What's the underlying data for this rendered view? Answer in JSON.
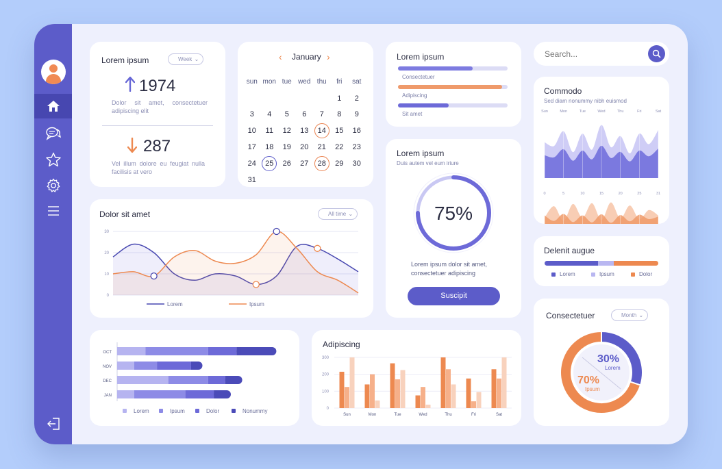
{
  "colors": {
    "primary": "#5c5cc9",
    "orange": "#ed8950",
    "light_purple": "#a8a6ee",
    "peach": "#f6c1a5",
    "background": "#b3cdfb"
  },
  "sidebar": {
    "icons": [
      "home-icon",
      "chat-icon",
      "star-icon",
      "gear-icon",
      "menu-icon"
    ],
    "logout_icon": "logout-icon"
  },
  "stats": {
    "title": "Lorem ipsum",
    "dropdown": "Week",
    "up_value": "1974",
    "up_text": "Dolor sit amet, consectetuer adipiscing elit",
    "down_value": "287",
    "down_text": "Vel illum dolore eu feugiat nulla facilisis at vero"
  },
  "calendar": {
    "month": "January",
    "weekdays": [
      "sun",
      "mon",
      "tue",
      "wed",
      "thu",
      "fri",
      "sat"
    ],
    "days": [
      "",
      "",
      "",
      "",
      "",
      "1",
      "2",
      "3",
      "4",
      "5",
      "6",
      "7",
      "8",
      "9",
      "10",
      "11",
      "12",
      "13",
      "14",
      "15",
      "16",
      "17",
      "18",
      "19",
      "20",
      "21",
      "22",
      "23",
      "24",
      "25",
      "26",
      "27",
      "28",
      "29",
      "30",
      "31"
    ],
    "highlight_orange": [
      "14",
      "28"
    ],
    "highlight_blue": [
      "25"
    ]
  },
  "progress_bars": {
    "title": "Lorem ipsum",
    "items": [
      {
        "label": "Consectetuer",
        "value": 0.68,
        "color": "#7d7be0"
      },
      {
        "label": "Adipiscing",
        "value": 0.95,
        "color": "#ef9a6b"
      },
      {
        "label": "Sit amet",
        "value": 0.46,
        "color": "#6d6ad8"
      }
    ]
  },
  "search": {
    "placeholder": "Search..."
  },
  "line_chart": {
    "title": "Dolor sit amet",
    "dropdown": "All time",
    "legend": [
      "Lorem",
      "Ipsum"
    ],
    "y_ticks": [
      "30",
      "20",
      "10",
      "0"
    ]
  },
  "gauge": {
    "title": "Lorem ipsum",
    "subtitle": "Duis autem vel eum iriure",
    "value_text": "75%",
    "value": 0.75,
    "description": "Lorem ipsum dolor sit amet, consectetuer adipiscing",
    "button": "Suscipit"
  },
  "commodo": {
    "title": "Commodo",
    "subtitle": "Sed diam nonummy nibh euismod",
    "top_labels": [
      "Sun",
      "Mon",
      "Tue",
      "Wed",
      "Thu",
      "Fri",
      "Sat"
    ],
    "bottom_labels": [
      "0",
      "5",
      "10",
      "15",
      "20",
      "25",
      "31"
    ]
  },
  "delenit": {
    "title": "Delenit augue",
    "segments": [
      {
        "label": "Lorem",
        "value": 0.47,
        "color": "#5c5cc9"
      },
      {
        "label": "Ipsum",
        "value": 0.14,
        "color": "#b9b7f1"
      },
      {
        "label": "Dolor",
        "value": 0.39,
        "color": "#ed8950"
      }
    ]
  },
  "hbar": {
    "categories": [
      "OCT",
      "NOV",
      "DEC",
      "JAN"
    ],
    "legend": [
      "Lorem",
      "Ipsum",
      "Dolor",
      "Nonummy"
    ],
    "legend_colors": [
      "#b6b4f0",
      "#8d8be6",
      "#6d6ad8",
      "#4b4bb8"
    ]
  },
  "vbar": {
    "title": "Adipiscing",
    "y_ticks": [
      "300",
      "200",
      "100",
      "0"
    ],
    "days": [
      "Sun",
      "Mon",
      "Tue",
      "Wed",
      "Thu",
      "Fri",
      "Sat"
    ]
  },
  "donut": {
    "title": "Consectetuer",
    "dropdown": "Month",
    "blue_pct": "30%",
    "blue_label": "Lorem",
    "orange_pct": "70%",
    "orange_label": "Ipsum",
    "blue_value": 0.3,
    "orange_value": 0.7
  },
  "chart_data": [
    {
      "type": "line",
      "title": "Dolor sit amet",
      "ylim": [
        0,
        30
      ],
      "x": [
        0,
        1,
        2,
        3,
        4,
        5,
        6,
        7,
        8,
        9,
        10,
        11,
        12
      ],
      "series": [
        {
          "name": "Lorem",
          "values": [
            18,
            24,
            20,
            10,
            7,
            10,
            9,
            5,
            9,
            23,
            22,
            17,
            11
          ]
        },
        {
          "name": "Ipsum",
          "values": [
            10,
            11,
            9,
            18,
            21,
            16,
            15,
            19,
            30,
            22,
            11,
            7,
            1
          ]
        }
      ]
    },
    {
      "type": "bar",
      "orientation": "horizontal",
      "stacked": true,
      "categories": [
        "OCT",
        "NOV",
        "DEC",
        "JAN"
      ],
      "series": [
        {
          "name": "Lorem",
          "values": [
            5,
            3,
            9,
            3
          ]
        },
        {
          "name": "Ipsum",
          "values": [
            11,
            4,
            7,
            9
          ]
        },
        {
          "name": "Dolor",
          "values": [
            5,
            6,
            3,
            5
          ]
        },
        {
          "name": "Nonummy",
          "values": [
            7,
            2,
            3,
            3
          ]
        }
      ]
    },
    {
      "type": "bar",
      "title": "Adipiscing",
      "ylim": [
        0,
        300
      ],
      "categories": [
        "Sun",
        "Mon",
        "Tue",
        "Wed",
        "Thu",
        "Fri",
        "Sat"
      ],
      "series": [
        {
          "name": "A",
          "values": [
            215,
            140,
            265,
            75,
            300,
            175,
            230
          ]
        },
        {
          "name": "B",
          "values": [
            125,
            200,
            170,
            125,
            230,
            40,
            175
          ]
        },
        {
          "name": "C",
          "values": [
            300,
            45,
            225,
            20,
            140,
            95,
            300
          ]
        }
      ]
    },
    {
      "type": "area",
      "title": "Commodo",
      "series": [
        {
          "name": "top",
          "values": [
            0.58,
            0.52,
            0.76,
            0.42,
            0.72,
            0.46,
            0.86,
            0.5,
            0.68,
            0.4,
            0.72,
            0.55,
            0.78
          ]
        },
        {
          "name": "bottom",
          "values": [
            0.5,
            0.8,
            0.42,
            0.86,
            0.5,
            0.88,
            0.44,
            0.9,
            0.48,
            0.82,
            0.46,
            0.7,
            0.56
          ]
        }
      ]
    },
    {
      "type": "pie",
      "title": "Consectetuer",
      "categories": [
        "Lorem",
        "Ipsum"
      ],
      "values": [
        30,
        70
      ]
    }
  ]
}
